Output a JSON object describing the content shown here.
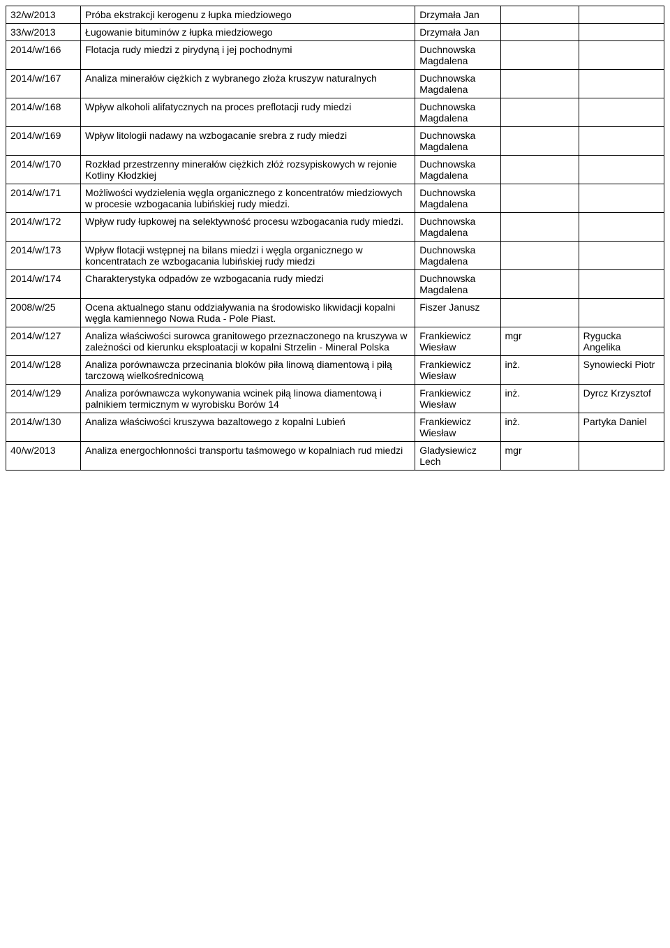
{
  "rows": [
    {
      "id": "32/w/2013",
      "topic": "Próba ekstrakcji kerogenu z łupka miedziowego",
      "supervisor": "Drzymała Jan",
      "degree": "",
      "student": ""
    },
    {
      "id": "33/w/2013",
      "topic": "Ługowanie bituminów z łupka miedziowego",
      "supervisor": "Drzymała Jan",
      "degree": "",
      "student": ""
    },
    {
      "id": "2014/w/166",
      "topic": "Flotacja rudy miedzi z pirydyną i jej pochodnymi",
      "supervisor": "Duchnowska Magdalena",
      "degree": "",
      "student": ""
    },
    {
      "id": "2014/w/167",
      "topic": "Analiza minerałów ciężkich z wybranego złoża kruszyw naturalnych",
      "supervisor": "Duchnowska Magdalena",
      "degree": "",
      "student": ""
    },
    {
      "id": "2014/w/168",
      "topic": "Wpływ alkoholi alifatycznych na proces preflotacji rudy miedzi",
      "supervisor": "Duchnowska Magdalena",
      "degree": "",
      "student": ""
    },
    {
      "id": "2014/w/169",
      "topic": "Wpływ litologii nadawy na wzbogacanie srebra z rudy miedzi",
      "supervisor": "Duchnowska Magdalena",
      "degree": "",
      "student": ""
    },
    {
      "id": "2014/w/170",
      "topic": "Rozkład przestrzenny minerałów ciężkich złóż rozsypiskowych w rejonie Kotliny Kłodzkiej",
      "supervisor": "Duchnowska Magdalena",
      "degree": "",
      "student": ""
    },
    {
      "id": "2014/w/171",
      "topic": "Możliwości wydzielenia węgla organicznego z koncentratów miedziowych w procesie wzbogacania lubińskiej rudy miedzi.",
      "supervisor": "Duchnowska Magdalena",
      "degree": "",
      "student": ""
    },
    {
      "id": "2014/w/172",
      "topic": "Wpływ rudy łupkowej na selektywność procesu wzbogacania rudy miedzi.",
      "supervisor": "Duchnowska Magdalena",
      "degree": "",
      "student": ""
    },
    {
      "id": "2014/w/173",
      "topic": "Wpływ flotacji wstępnej na bilans miedzi i węgla organicznego w koncentratach ze wzbogacania lubińskiej rudy miedzi",
      "supervisor": "Duchnowska Magdalena",
      "degree": "",
      "student": ""
    },
    {
      "id": "2014/w/174",
      "topic": "Charakterystyka odpadów ze wzbogacania rudy miedzi",
      "supervisor": "Duchnowska Magdalena",
      "degree": "",
      "student": ""
    },
    {
      "id": "2008/w/25",
      "topic": "Ocena aktualnego stanu oddziaływania na środowisko likwidacji kopalni węgla kamiennego Nowa Ruda - Pole Piast.",
      "supervisor": "Fiszer Janusz",
      "degree": "",
      "student": ""
    },
    {
      "id": "2014/w/127",
      "topic": "Analiza właściwości surowca granitowego przeznaczonego na kruszywa w zależności od kierunku eksploatacji w kopalni Strzelin - Mineral Polska",
      "supervisor": "Frankiewicz Wiesław",
      "degree": "mgr",
      "student": "Rygucka Angelika"
    },
    {
      "id": "2014/w/128",
      "topic": "Analiza porównawcza przecinania bloków piła linową diamentową i piłą tarczową wielkośrednicową",
      "supervisor": "Frankiewicz Wiesław",
      "degree": "inż.",
      "student": " Synowiecki Piotr"
    },
    {
      "id": "2014/w/129",
      "topic": "Analiza porównawcza wykonywania wcinek piłą linowa diamentową i palnikiem termicznym w wyrobisku Borów 14",
      "supervisor": "Frankiewicz Wiesław",
      "degree": "inż.",
      "student": "Dyrcz Krzysztof"
    },
    {
      "id": "2014/w/130",
      "topic": "Analiza właściwości kruszywa bazaltowego z kopalni Lubień",
      "supervisor": "Frankiewicz Wiesław",
      "degree": "inż.",
      "student": "Partyka Daniel"
    },
    {
      "id": "40/w/2013",
      "topic": "Analiza energochłonności transportu taśmowego w kopalniach rud miedzi",
      "supervisor": "Gladysiewicz Lech",
      "degree": "mgr",
      "student": ""
    }
  ]
}
